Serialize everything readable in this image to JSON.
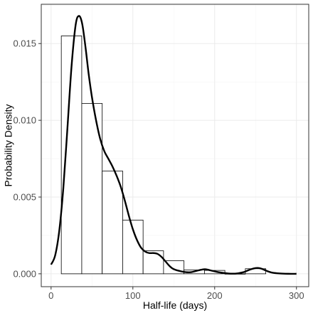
{
  "chart_data": {
    "type": "bar",
    "xlabel": "Half-life (days)",
    "ylabel": "Probability Density",
    "xlim": [
      -12,
      315
    ],
    "ylim": [
      -0.00084,
      0.01756
    ],
    "x_ticks": [
      0,
      100,
      200,
      300
    ],
    "x_tick_labels": [
      "0",
      "100",
      "200",
      "300"
    ],
    "y_ticks": [
      0.0,
      0.005,
      0.01,
      0.015
    ],
    "y_tick_labels": [
      "0.000",
      "0.005",
      "0.010",
      "0.015"
    ],
    "grid": true,
    "histogram": {
      "bin_edges": [
        12.5,
        37.5,
        62.5,
        87.5,
        112.5,
        137.5,
        162.5,
        187.5,
        212.5,
        237.5,
        262.5
      ],
      "values": [
        0.0155,
        0.0111,
        0.0067,
        0.0035,
        0.0015,
        0.00085,
        0.00025,
        0.00022,
        0.0,
        0.00033
      ]
    },
    "density_curve": {
      "x": [
        0,
        5,
        10,
        15,
        20,
        25,
        30,
        34,
        38,
        42,
        46,
        50,
        55,
        60,
        65,
        70,
        75,
        80,
        85,
        90,
        95,
        100,
        105,
        110,
        115,
        120,
        125,
        130,
        135,
        140,
        145,
        150,
        160,
        170,
        180,
        188,
        195,
        205,
        215,
        225,
        235,
        242,
        248,
        253,
        258,
        263,
        270,
        280,
        290,
        300
      ],
      "y": [
        0.0006,
        0.0012,
        0.0028,
        0.0056,
        0.0095,
        0.0135,
        0.0162,
        0.0168,
        0.0163,
        0.0148,
        0.013,
        0.0115,
        0.01,
        0.0088,
        0.008,
        0.0075,
        0.007,
        0.0064,
        0.0057,
        0.0048,
        0.0038,
        0.0029,
        0.0022,
        0.0017,
        0.00145,
        0.00135,
        0.00135,
        0.0013,
        0.0011,
        0.0008,
        0.0005,
        0.0003,
        0.00015,
        0.0001,
        0.00022,
        0.0003,
        0.00022,
        0.0001,
        3e-05,
        1e-05,
        0.0001,
        0.00025,
        0.00035,
        0.00038,
        0.00032,
        0.0002,
        8e-05,
        2e-05,
        0.0,
        0.0
      ]
    }
  },
  "colors": {
    "background": "#ffffff",
    "panel_border": "#333333",
    "grid_major": "#ebebeb",
    "grid_minor": "#f5f5f5",
    "bar_fill": "#ffffff",
    "bar_stroke": "#000000",
    "curve": "#000000",
    "tick_label": "#4d4d4d"
  }
}
